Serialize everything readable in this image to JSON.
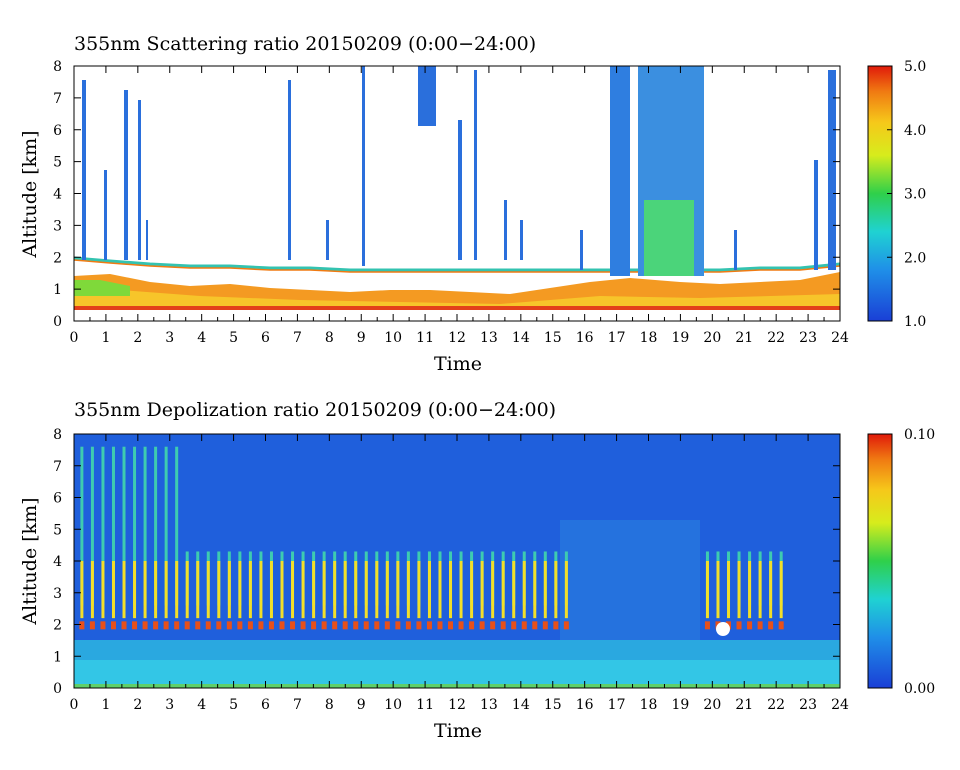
{
  "chart_data": [
    {
      "type": "heatmap",
      "title": "355nm Scattering ratio  20150209 (0:00−24:00)",
      "xlabel": "Time",
      "ylabel": "Altitude [km]",
      "xlim": [
        0,
        24
      ],
      "ylim": [
        0,
        8
      ],
      "xticks": [
        "0",
        "1",
        "2",
        "3",
        "4",
        "5",
        "6",
        "7",
        "8",
        "9",
        "10",
        "11",
        "12",
        "13",
        "14",
        "15",
        "16",
        "17",
        "18",
        "19",
        "20",
        "21",
        "22",
        "23",
        "24"
      ],
      "yticks": [
        "0",
        "1",
        "2",
        "3",
        "4",
        "5",
        "6",
        "7",
        "8"
      ],
      "colorbar": {
        "min": 1.0,
        "max": 5.0,
        "ticks": [
          "1.0",
          "2.0",
          "3.0",
          "4.0",
          "5.0"
        ]
      },
      "features": {
        "boundary_layer_top_km": 1.3,
        "cloud_layer_km": [
          1.7,
          2.0
        ],
        "thick_cloud_hours": [
          17.5,
          19.6
        ]
      }
    },
    {
      "type": "heatmap",
      "title": "355nm Depolization ratio  20150209 (0:00−24:00)",
      "xlabel": "Time",
      "ylabel": "Altitude [km]",
      "xlim": [
        0,
        24
      ],
      "ylim": [
        0,
        8
      ],
      "xticks": [
        "0",
        "1",
        "2",
        "3",
        "4",
        "5",
        "6",
        "7",
        "8",
        "9",
        "10",
        "11",
        "12",
        "13",
        "14",
        "15",
        "16",
        "17",
        "18",
        "19",
        "20",
        "21",
        "22",
        "23",
        "24"
      ],
      "yticks": [
        "0",
        "1",
        "2",
        "3",
        "4",
        "5",
        "6",
        "7",
        "8"
      ],
      "colorbar": {
        "min": 0.0,
        "max": 0.1,
        "ticks": [
          "0.00",
          "0.10"
        ]
      },
      "features": {
        "precipitation_streak_hours": [
          [
            0.2,
            15.4
          ],
          [
            19.8,
            22.4
          ]
        ],
        "streak_top_km": 4.3
      }
    }
  ],
  "colors": {
    "low": "#1a3fd6",
    "mid": "#2fd04a",
    "high": "#e01a0a"
  }
}
